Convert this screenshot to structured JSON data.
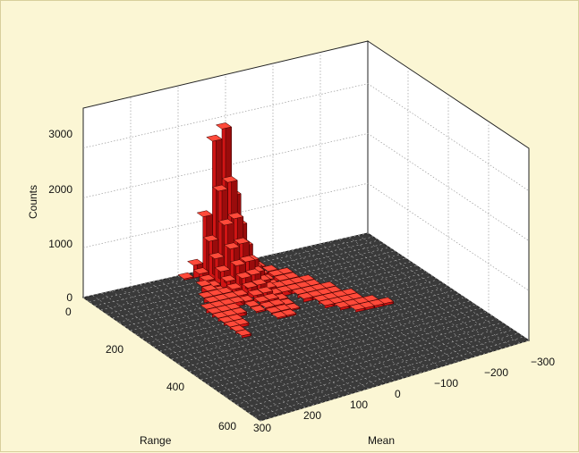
{
  "chart_data": {
    "type": "bar3d",
    "title": "",
    "zlabel": "Counts",
    "xlabel": "Mean",
    "ylabel": "Range",
    "zlim": [
      0,
      3800
    ],
    "xlim": [
      -300,
      300
    ],
    "ylim": [
      0,
      600
    ],
    "ztick_labels": [
      "0",
      "1000",
      "2000",
      "3000"
    ],
    "xtick_labels": [
      "300",
      "200",
      "100",
      "0",
      "−100",
      "−200",
      "−300"
    ],
    "ytick_labels": [
      "0",
      "200",
      "400",
      "600"
    ],
    "grid": true,
    "peak": {
      "mean": 0,
      "range": 0,
      "count": 3750
    },
    "ridge_counts_near_peak": [
      {
        "mean": 0,
        "range": 0,
        "count": 3750
      },
      {
        "mean": 0,
        "range": 15,
        "count": 3300
      },
      {
        "mean": 0,
        "range": 30,
        "count": 2750
      },
      {
        "mean": 0,
        "range": 45,
        "count": 2250
      },
      {
        "mean": 0,
        "range": 60,
        "count": 1700
      },
      {
        "mean": 0,
        "range": 75,
        "count": 1150
      },
      {
        "mean": 0,
        "range": 90,
        "count": 700
      },
      {
        "mean": 0,
        "range": 105,
        "count": 350
      }
    ],
    "bar_color": "#d01414",
    "floor_color": "#3a3a3a"
  }
}
